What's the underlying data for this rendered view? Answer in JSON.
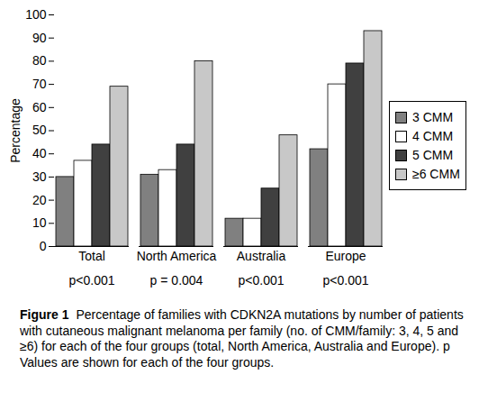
{
  "chart_data": {
    "type": "bar",
    "categories": [
      "Total",
      "North America",
      "Australia",
      "Europe"
    ],
    "annotations": [
      "p<0.001",
      "p = 0.004",
      "p<0.001",
      "p<0.001"
    ],
    "series": [
      {
        "name": "3 CMM",
        "color": "#808080",
        "values": [
          30,
          31,
          12,
          42
        ]
      },
      {
        "name": "4 CMM",
        "color": "#ffffff",
        "values": [
          37,
          33,
          12,
          70
        ]
      },
      {
        "name": "5 CMM",
        "color": "#404040",
        "values": [
          44,
          44,
          25,
          79
        ]
      },
      {
        "name": "≥6 CMM",
        "color": "#c8c8c8",
        "values": [
          69,
          80,
          48,
          93
        ]
      }
    ],
    "y_label": "Percentage",
    "ylim": [
      0,
      100
    ],
    "yticks": [
      0,
      10,
      20,
      30,
      40,
      50,
      60,
      70,
      80,
      90,
      100
    ],
    "legend": "right",
    "caption_label": "Figure 1",
    "caption": "Percentage of families with CDKN2A mutations by number of patients with cutaneous malignant melanoma per family (no. of CMM/family: 3, 4, 5 and ≥6) for each of the four groups (total, North America, Australia and Europe). p Values are shown for each of the four groups."
  }
}
